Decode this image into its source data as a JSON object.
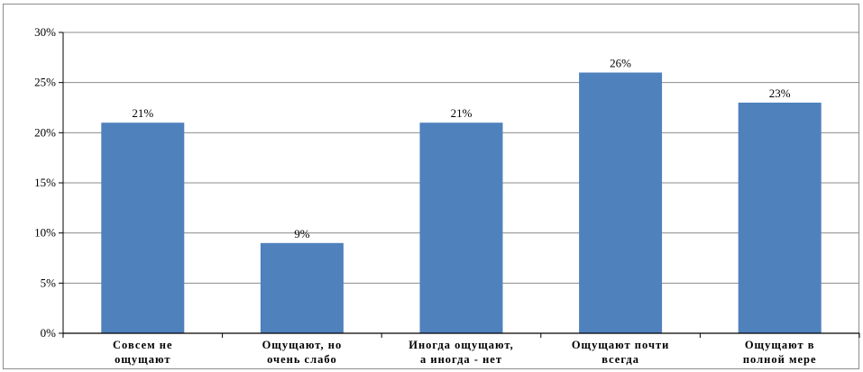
{
  "chart_data": {
    "type": "bar",
    "title": "",
    "xlabel": "",
    "ylabel": "",
    "categories": [
      [
        "Совсем не",
        "ощущают"
      ],
      [
        "Ощущают, но",
        "очень слабо"
      ],
      [
        "Иногда ощущают,",
        "а иногда - нет"
      ],
      [
        "Ощущают почти",
        "всегда"
      ],
      [
        "Ощущают в",
        "полной мере"
      ]
    ],
    "values": [
      21,
      9,
      21,
      26,
      23
    ],
    "data_labels": [
      "21%",
      "9%",
      "21%",
      "26%",
      "23%"
    ],
    "ylim": [
      0,
      30
    ],
    "y_ticks": [
      0,
      5,
      10,
      15,
      20,
      25,
      30
    ],
    "y_tick_labels": [
      "0%",
      "5%",
      "10%",
      "15%",
      "20%",
      "25%",
      "30%"
    ],
    "grid": true,
    "legend": "none",
    "bar_color": "#4f81bd",
    "grid_color": "#8c8c8c"
  }
}
